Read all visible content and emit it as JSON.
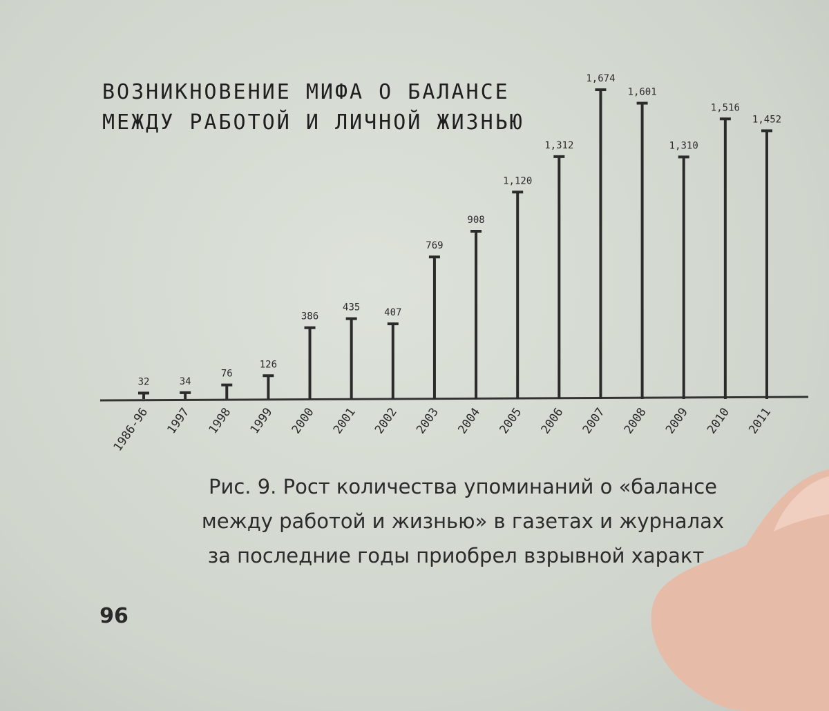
{
  "chart_data": {
    "type": "bar",
    "title": "ВОЗНИКНОВЕНИЕ МИФА О БАЛАНСЕ МЕЖДУ РАБОТОЙ И ЛИЧНОЙ ЖИЗНЬЮ",
    "categories": [
      "1986-96",
      "1997",
      "1998",
      "1999",
      "2000",
      "2001",
      "2002",
      "2003",
      "2004",
      "2005",
      "2006",
      "2007",
      "2008",
      "2009",
      "2010",
      "2011"
    ],
    "values": [
      32,
      34,
      76,
      126,
      386,
      435,
      407,
      769,
      908,
      1120,
      1312,
      1674,
      1601,
      1310,
      1516,
      1452
    ],
    "value_labels": [
      "32",
      "34",
      "76",
      "126",
      "386",
      "435",
      "407",
      "769",
      "908",
      "1,120",
      "1,312",
      "1,674",
      "1,601",
      "1,310",
      "1,516",
      "1,452"
    ],
    "color": "#2b2b2b"
  },
  "caption": [
    "Рис. 9. Рост количества упоминаний о «балансе",
    "между работой и жизнью» в газетах и журналах",
    "за последние годы приобрел взрывной характ"
  ],
  "page_number": "96"
}
